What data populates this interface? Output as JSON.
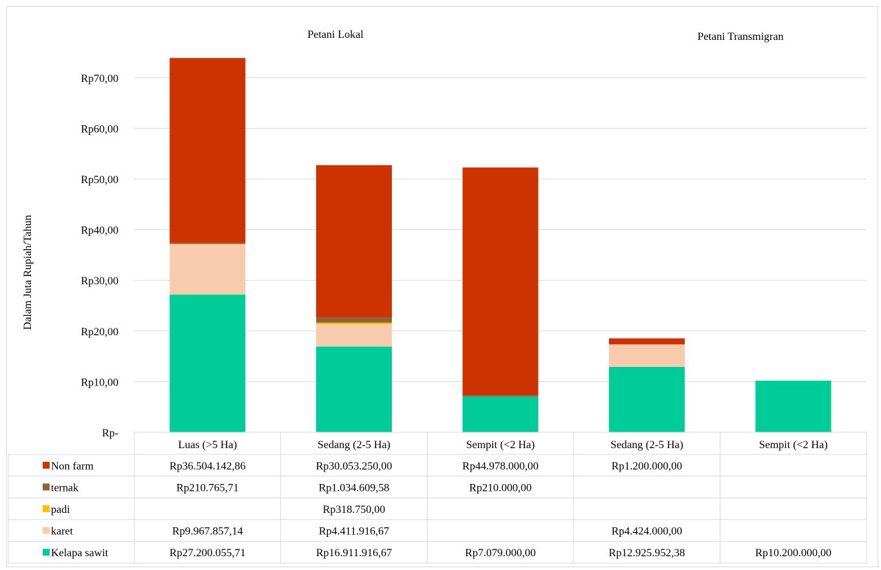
{
  "chart_data": {
    "type": "bar",
    "stacked": true,
    "group_labels": [
      "Petani Lokal",
      "Petani Transmigran"
    ],
    "ylabel": "Dalam Juta Rupiah/Tahun",
    "ylim": [
      0,
      74
    ],
    "yticks": [
      0,
      10,
      20,
      30,
      40,
      50,
      60,
      70
    ],
    "ytick_labels": [
      "Rp-",
      "Rp10,00",
      "Rp20,00",
      "Rp30,00",
      "Rp40,00",
      "Rp50,00",
      "Rp60,00",
      "Rp70,00"
    ],
    "grid": true,
    "legend_placement": "data-table",
    "categories": [
      "Luas (>5 Ha)",
      "Sedang (2-5 Ha)",
      "Sempit (<2 Ha)",
      "Sedang (2-5 Ha)",
      "Sempit (<2 Ha)"
    ],
    "series": [
      {
        "name": "Kelapa sawit",
        "color": "#00cc99",
        "values": [
          27.20005571,
          16.91191667,
          7.079,
          12.92595238,
          10.2
        ],
        "labels": [
          "Rp27.200.055,71",
          "Rp16.911.916,67",
          "Rp7.079.000,00",
          "Rp12.925.952,38",
          "Rp10.200.000,00"
        ]
      },
      {
        "name": "karet",
        "color": "#f8cbad",
        "values": [
          9.96785714,
          4.41191667,
          0,
          4.424,
          0
        ],
        "labels": [
          "Rp9.967.857,14",
          "Rp4.411.916,67",
          "",
          "Rp4.424.000,00",
          ""
        ]
      },
      {
        "name": "padi",
        "color": "#ffc000",
        "values": [
          0,
          0.31875,
          0,
          0,
          0
        ],
        "labels": [
          "",
          "Rp318.750,00",
          "",
          "",
          ""
        ]
      },
      {
        "name": "ternak",
        "color": "#8c6239",
        "values": [
          0.21076571,
          1.03460958,
          0.21,
          0,
          0
        ],
        "labels": [
          "Rp210.765,71",
          "Rp1.034.609,58",
          "Rp210.000,00",
          "",
          ""
        ]
      },
      {
        "name": "Non farm",
        "color": "#cc3300",
        "values": [
          36.50414286,
          30.05325,
          44.978,
          1.2,
          0
        ],
        "labels": [
          "Rp36.504.142,86",
          "Rp30.053.250,00",
          "Rp44.978.000,00",
          "Rp1.200.000,00",
          ""
        ]
      }
    ]
  }
}
